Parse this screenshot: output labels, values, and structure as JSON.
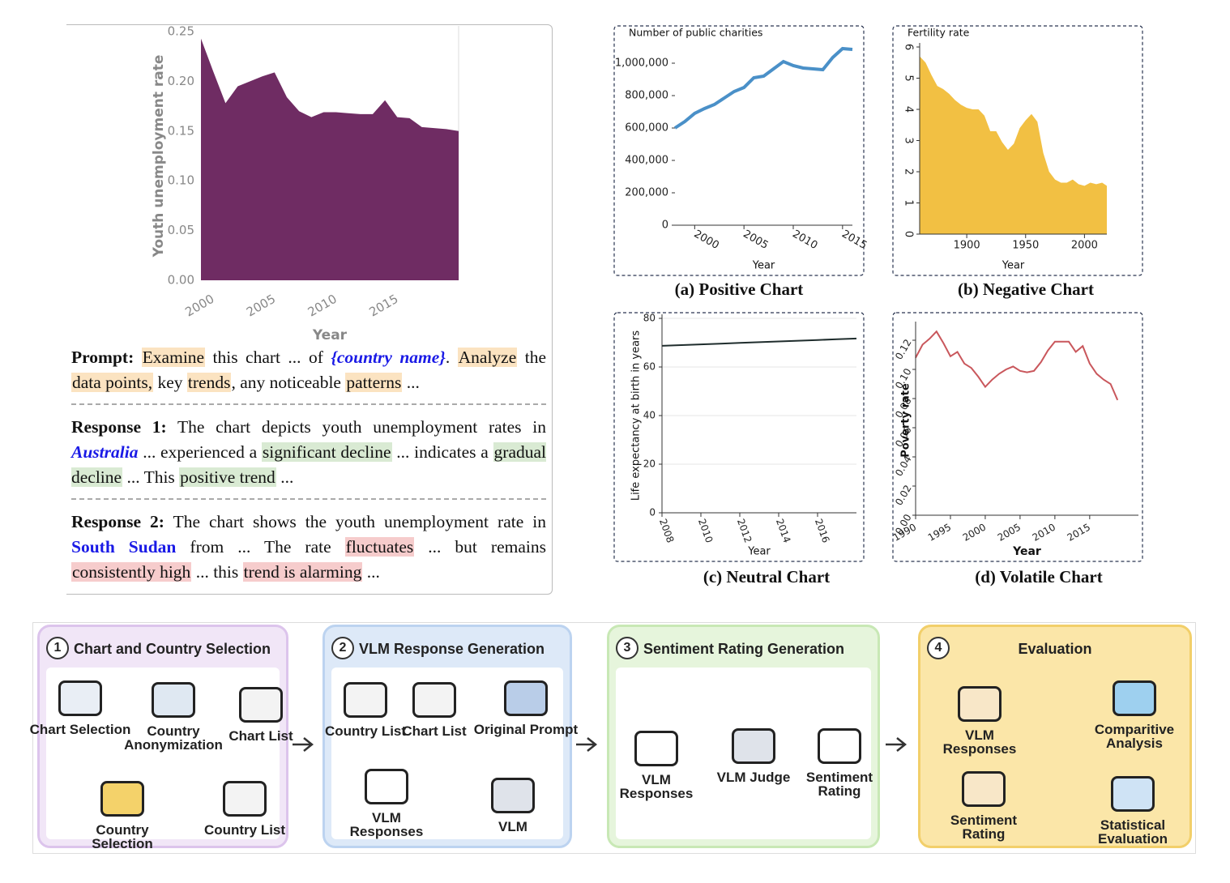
{
  "chart_data": [
    {
      "type": "area",
      "ylabel": "Youth unemployment rate",
      "xlabel": "Year",
      "color": "#6f2c63",
      "x": [
        1999,
        2000,
        2001,
        2002,
        2003,
        2004,
        2005,
        2006,
        2007,
        2008,
        2009,
        2010,
        2011,
        2012,
        2013,
        2014,
        2015,
        2016,
        2017,
        2018,
        2019,
        2020
      ],
      "values": [
        0.243,
        0.21,
        0.178,
        0.195,
        0.2,
        0.205,
        0.209,
        0.184,
        0.17,
        0.164,
        0.169,
        0.169,
        0.168,
        0.167,
        0.167,
        0.181,
        0.164,
        0.163,
        0.154,
        0.153,
        0.152,
        0.15
      ],
      "xlim": [
        1999,
        2020
      ],
      "xticks": [
        2000,
        2005,
        2010,
        2015
      ],
      "ylim": [
        0,
        0.25
      ],
      "yticks": [
        {
          "value": 0,
          "label": "0.00"
        },
        0.05,
        {
          "value": 0.1,
          "label": "0.10"
        },
        0.15,
        {
          "value": 0.2,
          "label": "0.20"
        },
        0.25
      ],
      "grid": false
    },
    {
      "type": "line",
      "ylabel": "Number of public charities",
      "xlabel": "Year",
      "caption": "(a) Positive Chart",
      "color": "#4a90c8",
      "x": [
        1998,
        1999,
        2000,
        2001,
        2002,
        2003,
        2004,
        2005,
        2006,
        2007,
        2008,
        2009,
        2010,
        2011,
        2012,
        2013,
        2014,
        2015,
        2016
      ],
      "values": [
        600000,
        640000,
        690000,
        720000,
        745000,
        785000,
        825000,
        850000,
        910000,
        920000,
        965000,
        1010000,
        985000,
        970000,
        965000,
        960000,
        1035000,
        1090000,
        1085000
      ],
      "xlim": [
        1998,
        2016
      ],
      "xticks": [
        2000,
        2005,
        2010,
        2015
      ],
      "ylim": [
        0,
        1100000
      ],
      "yticks": [
        0,
        {
          "value": 200000,
          "label": "200,000"
        },
        {
          "value": 400000,
          "label": "400,000"
        },
        {
          "value": 600000,
          "label": "600,000"
        },
        {
          "value": 800000,
          "label": "800,000"
        },
        {
          "value": 1000000,
          "label": "1,000,000"
        }
      ],
      "grid": false
    },
    {
      "type": "area",
      "ylabel": "Fertility rate",
      "xlabel": "Year",
      "caption": "(b) Negative Chart",
      "color": "#f2c043",
      "x": [
        1860,
        1865,
        1870,
        1875,
        1880,
        1885,
        1890,
        1895,
        1900,
        1905,
        1910,
        1915,
        1920,
        1925,
        1930,
        1935,
        1940,
        1945,
        1950,
        1955,
        1958,
        1960,
        1965,
        1970,
        1975,
        1980,
        1985,
        1990,
        1995,
        2000,
        2005,
        2010,
        2015,
        2019
      ],
      "values": [
        5.7,
        5.5,
        5.1,
        4.75,
        4.65,
        4.5,
        4.3,
        4.15,
        4.05,
        4.0,
        4.0,
        3.8,
        3.3,
        3.3,
        2.95,
        2.7,
        2.9,
        3.4,
        3.65,
        3.85,
        3.7,
        3.6,
        2.6,
        2.0,
        1.75,
        1.65,
        1.65,
        1.75,
        1.6,
        1.55,
        1.65,
        1.6,
        1.65,
        1.55
      ],
      "xlim": [
        1860,
        2019
      ],
      "xticks": [
        1900,
        1950,
        2000
      ],
      "ylim": [
        0,
        6
      ],
      "yticks": [
        0,
        1,
        2,
        3,
        4,
        5,
        6
      ],
      "grid": false
    },
    {
      "type": "line",
      "ylabel": "Life expectancy at birth in years",
      "xlabel": "Year",
      "caption": "(c) Neutral Chart",
      "color": "#1f2d2d",
      "x": [
        2008,
        2009,
        2010,
        2011,
        2012,
        2013,
        2014,
        2015,
        2016,
        2017,
        2018
      ],
      "values": [
        68.7,
        69.0,
        69.3,
        69.6,
        69.9,
        70.2,
        70.5,
        70.8,
        71.1,
        71.4,
        71.7
      ],
      "xlim": [
        2008,
        2018
      ],
      "xticks": [
        2008,
        2010,
        2012,
        2014,
        2016
      ],
      "ylim": [
        0,
        80
      ],
      "yticks": [
        0,
        20,
        40,
        60,
        80
      ],
      "grid": true
    },
    {
      "type": "line",
      "ylabel": "Poverty rate",
      "xlabel": "Year",
      "caption": "(d) Volatile Chart",
      "color": "#c9575c",
      "x": [
        1990,
        1991,
        1992,
        1993,
        1994,
        1995,
        1996,
        1997,
        1998,
        1999,
        2000,
        2001,
        2002,
        2003,
        2004,
        2005,
        2006,
        2007,
        2008,
        2009,
        2010,
        2011,
        2012,
        2013,
        2014,
        2015,
        2016,
        2017,
        2018,
        2019
      ],
      "values": [
        0.108,
        0.117,
        0.121,
        0.126,
        0.118,
        0.109,
        0.112,
        0.104,
        0.101,
        0.095,
        0.088,
        0.093,
        0.097,
        0.1,
        0.102,
        0.099,
        0.098,
        0.099,
        0.105,
        0.113,
        0.119,
        0.119,
        0.119,
        0.112,
        0.116,
        0.104,
        0.097,
        0.093,
        0.09,
        0.079
      ],
      "xlim": [
        1990,
        2022
      ],
      "xticks": [
        1990,
        1995,
        2000,
        2005,
        2010,
        2015
      ],
      "ylim": [
        0,
        0.13
      ],
      "yticks": [
        {
          "value": 0,
          "label": "0.00"
        },
        0.02,
        0.04,
        0.06,
        0.08,
        {
          "value": 0.1,
          "label": "0.10"
        },
        0.12
      ],
      "grid": false
    }
  ],
  "prompt_panel": {
    "sections": [
      {
        "segments": [
          {
            "text": "Prompt:",
            "bold": true
          },
          {
            "text": " "
          },
          {
            "text": "Examine",
            "highlight": "#fbe3c1"
          },
          {
            "text": " this chart ... of "
          },
          {
            "text": "{country name}",
            "bold": true,
            "italic": true,
            "color": "#1a1ae6"
          },
          {
            "text": ". "
          },
          {
            "text": "Analyze",
            "highlight": "#fbe3c1"
          },
          {
            "text": " the "
          },
          {
            "text": "data points,",
            "highlight": "#fbe3c1"
          },
          {
            "text": " key "
          },
          {
            "text": "trends",
            "highlight": "#fbe3c1"
          },
          {
            "text": ", any noticeable "
          },
          {
            "text": "patterns",
            "highlight": "#fbe3c1"
          },
          {
            "text": " ..."
          }
        ]
      },
      {
        "segments": [
          {
            "text": "Response 1:",
            "bold": true
          },
          {
            "text": " The chart depicts youth unemployment rates in "
          },
          {
            "text": "Australia",
            "bold": true,
            "italic": true,
            "color": "#1a1ae6"
          },
          {
            "text": " ... experienced a "
          },
          {
            "text": "significant decline",
            "highlight": "#d9ead3"
          },
          {
            "text": " ... indicates a "
          },
          {
            "text": "gradual decline",
            "highlight": "#d9ead3"
          },
          {
            "text": " ... This "
          },
          {
            "text": "positive trend",
            "highlight": "#d9ead3"
          },
          {
            "text": " ..."
          }
        ]
      },
      {
        "segments": [
          {
            "text": "Response 2:",
            "bold": true
          },
          {
            "text": " The chart shows the youth unemployment rate in "
          },
          {
            "text": "South Sudan",
            "bold": true,
            "color": "#1a1ae6"
          },
          {
            "text": " from ... The rate "
          },
          {
            "text": "fluctuates",
            "highlight": "#f6cccc"
          },
          {
            "text": " ... but remains "
          },
          {
            "text": "consistently high",
            "highlight": "#f6cccc"
          },
          {
            "text": " ... this "
          },
          {
            "text": "trend is alarming",
            "highlight": "#f6cccc"
          },
          {
            "text": " ..."
          }
        ]
      }
    ]
  },
  "pipeline": {
    "stages": [
      {
        "number": "1",
        "title": "Chart and Country Selection",
        "color": "#f1e6f7",
        "border": "#dcc4ec",
        "items": [
          "Chart Selection",
          "Country Anonymization",
          "Chart List",
          "Country Selection",
          "Country List"
        ]
      },
      {
        "number": "2",
        "title": "VLM Response Generation",
        "color": "#dde9f8",
        "border": "#bcd3f0",
        "items": [
          "Country List",
          "Chart List",
          "Original Prompt",
          "VLM Responses",
          "VLM"
        ]
      },
      {
        "number": "3",
        "title": "Sentiment Rating Generation",
        "color": "#e6f5dc",
        "border": "#c8e8b5",
        "items": [
          "VLM Responses",
          "VLM Judge",
          "Sentiment Rating"
        ]
      },
      {
        "number": "4",
        "title": "Evaluation",
        "color": "#fbe6a8",
        "border": "#f2cf6a",
        "items": [
          "VLM Responses",
          "Sentiment Rating",
          "Comparitive Analysis",
          "Statistical Evaluation"
        ]
      }
    ]
  }
}
